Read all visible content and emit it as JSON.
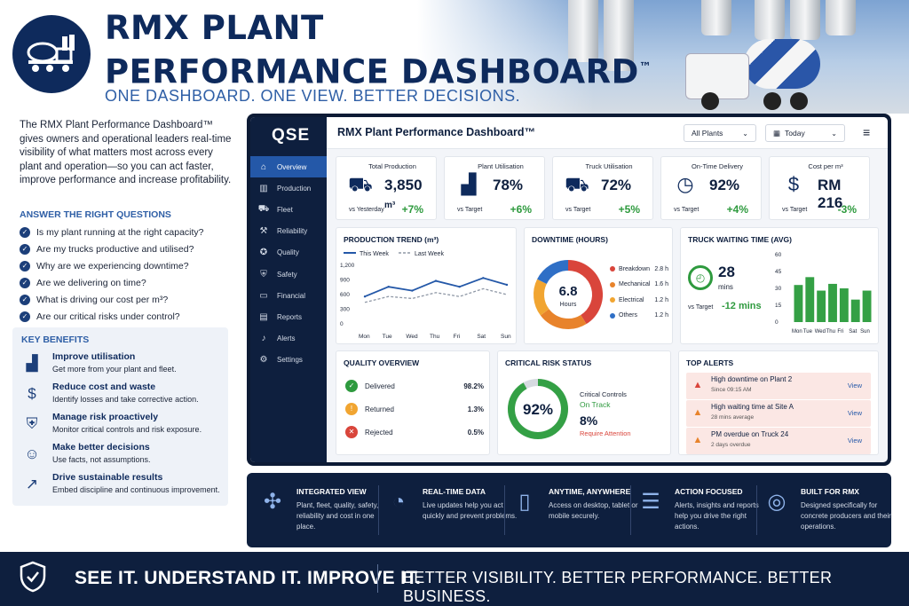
{
  "header": {
    "title_line1": "RMX PLANT",
    "title_line2": "PERFORMANCE DASHBOARD",
    "title_mark": "™",
    "tagline": "ONE DASHBOARD. ONE VIEW. BETTER DECISIONS."
  },
  "intro": "The RMX Plant Performance Dashboard™ gives owners and operational leaders real-time visibility of what matters most across every plant and operation—so you can act faster, improve performance and increase profitability.",
  "questions": {
    "heading": "ANSWER THE RIGHT QUESTIONS",
    "items": [
      "Is my plant running at the right capacity?",
      "Are my trucks productive and utilised?",
      "Why are we experiencing downtime?",
      "Are we delivering on time?",
      "What is driving our cost per m³?",
      "Are our critical risks under control?"
    ]
  },
  "benefits": {
    "heading": "KEY BENEFITS",
    "items": [
      {
        "title": "Improve utilisation",
        "desc": "Get more from your plant and fleet.",
        "icon": "bar-chart-icon"
      },
      {
        "title": "Reduce cost and waste",
        "desc": "Identify losses and take corrective action.",
        "icon": "dollar-icon"
      },
      {
        "title": "Manage risk proactively",
        "desc": "Monitor critical controls and risk exposure.",
        "icon": "shield-check-icon"
      },
      {
        "title": "Make better decisions",
        "desc": "Use facts, not assumptions.",
        "icon": "people-icon"
      },
      {
        "title": "Drive sustainable results",
        "desc": "Embed discipline and continuous improvement.",
        "icon": "trend-icon"
      }
    ]
  },
  "app": {
    "brand": "QSE",
    "title": "RMX Plant Performance Dashboard™",
    "plant_filter": "All Plants",
    "date_filter": "Today",
    "nav": [
      {
        "label": "Overview",
        "icon": "home-icon",
        "glyph": "⌂",
        "active": true
      },
      {
        "label": "Production",
        "icon": "factory-icon",
        "glyph": "▥"
      },
      {
        "label": "Fleet",
        "icon": "truck-icon",
        "glyph": "⛟"
      },
      {
        "label": "Reliability",
        "icon": "wrench-icon",
        "glyph": "⚒"
      },
      {
        "label": "Quality",
        "icon": "badge-icon",
        "glyph": "✪"
      },
      {
        "label": "Safety",
        "icon": "shield-icon",
        "glyph": "⛨"
      },
      {
        "label": "Financial",
        "icon": "wallet-icon",
        "glyph": "▭"
      },
      {
        "label": "Reports",
        "icon": "report-icon",
        "glyph": "▤"
      },
      {
        "label": "Alerts",
        "icon": "bell-icon",
        "glyph": "♪"
      },
      {
        "label": "Settings",
        "icon": "gear-icon",
        "glyph": "⚙"
      }
    ],
    "kpis": [
      {
        "label": "Total Production",
        "value": "3,850",
        "unit": "m³",
        "sub": "vs Yesterday",
        "change": "+7%",
        "icon": "mixer-truck-icon",
        "glyph": "⛟"
      },
      {
        "label": "Plant Utilisation",
        "value": "78%",
        "unit": "",
        "sub": "vs Target",
        "change": "+6%",
        "icon": "factory-icon",
        "glyph": "▟"
      },
      {
        "label": "Truck Utilisation",
        "value": "72%",
        "unit": "",
        "sub": "vs Target",
        "change": "+5%",
        "icon": "truck-icon",
        "glyph": "⛟"
      },
      {
        "label": "On-Time Delivery",
        "value": "92%",
        "unit": "",
        "sub": "vs Target",
        "change": "+4%",
        "icon": "clock-icon",
        "glyph": "◷"
      },
      {
        "label": "Cost per m³",
        "value": "RM 216",
        "unit": "",
        "sub": "vs Target",
        "change": "-3%",
        "icon": "dollar-icon",
        "glyph": "$"
      }
    ],
    "production_trend": {
      "title": "PRODUCTION TREND (m³)",
      "legend_this": "This Week",
      "legend_last": "Last Week",
      "days": [
        "Mon",
        "Tue",
        "Wed",
        "Thu",
        "Fri",
        "Sat",
        "Sun"
      ],
      "y_ticks": [
        "1,200",
        "900",
        "600",
        "300",
        "0"
      ],
      "ymax": 1200,
      "this_week": [
        560,
        760,
        680,
        880,
        760,
        940,
        800
      ],
      "last_week": [
        440,
        560,
        520,
        640,
        560,
        720,
        600
      ]
    },
    "downtime": {
      "title": "DOWNTIME (HOURS)",
      "total": "6.8",
      "total_unit": "Hours",
      "items": [
        {
          "label": "Breakdown",
          "value": "2.8 h",
          "hours": 2.8,
          "color": "#d9453b"
        },
        {
          "label": "Mechanical",
          "value": "1.6 h",
          "hours": 1.6,
          "color": "#e8832b"
        },
        {
          "label": "Electrical",
          "value": "1.2 h",
          "hours": 1.2,
          "color": "#f1a531"
        },
        {
          "label": "Others",
          "value": "1.2 h",
          "hours": 1.2,
          "color": "#2f6fc6"
        }
      ]
    },
    "truck_waiting": {
      "title": "TRUCK WAITING TIME (AVG)",
      "value": "28",
      "unit": "mins",
      "sub": "vs Target",
      "change": "-12 mins",
      "y_ticks": [
        "60",
        "45",
        "30",
        "15",
        "0"
      ],
      "ymax": 60,
      "days": [
        "Mon",
        "Tue",
        "Wed",
        "Thu",
        "Fri",
        "Sat",
        "Sun"
      ],
      "values": [
        33,
        40,
        28,
        34,
        30,
        20,
        28
      ]
    },
    "quality": {
      "title": "QUALITY OVERVIEW",
      "rows": [
        {
          "label": "Delivered",
          "value": "98.2%",
          "color": "#2e9a3e",
          "glyph": "✓"
        },
        {
          "label": "Returned",
          "value": "1.3%",
          "color": "#f1a531",
          "glyph": "!"
        },
        {
          "label": "Rejected",
          "value": "0.5%",
          "color": "#d9453b",
          "glyph": "✕"
        }
      ]
    },
    "risk": {
      "title": "CRITICAL RISK STATUS",
      "percent": "92%",
      "fraction": 0.92,
      "label": "Critical Controls",
      "status": "On Track",
      "attention_value": "8%",
      "attention_label": "Require Attention"
    },
    "alerts": {
      "title": "TOP ALERTS",
      "view_label": "View",
      "items": [
        {
          "title": "High downtime on Plant 2",
          "sub": "Since 09:15 AM",
          "color": "#d9453b"
        },
        {
          "title": "High waiting time at Site A",
          "sub": "28 mins average",
          "color": "#e8832b"
        },
        {
          "title": "PM overdue on Truck 24",
          "sub": "2 days overdue",
          "color": "#e8832b"
        }
      ]
    }
  },
  "features": [
    {
      "title": "INTEGRATED VIEW",
      "desc": "Plant, fleet, quality, safety, reliability and cost in one place.",
      "icon": "network-icon",
      "glyph": "✣"
    },
    {
      "title": "REAL-TIME DATA",
      "desc": "Live updates help you act quickly and prevent problems.",
      "icon": "stopwatch-icon",
      "glyph": "◔"
    },
    {
      "title": "ANYTIME, ANYWHERE",
      "desc": "Access on desktop, tablet or mobile securely.",
      "icon": "mobile-icon",
      "glyph": "▯"
    },
    {
      "title": "ACTION FOCUSED",
      "desc": "Alerts, insights and reports help you drive the right actions.",
      "icon": "checklist-icon",
      "glyph": "☰"
    },
    {
      "title": "BUILT FOR RMX",
      "desc": "Designed specifically for concrete producers and their operations.",
      "icon": "target-icon",
      "glyph": "◎"
    }
  ],
  "footer": {
    "left": "SEE IT. UNDERSTAND IT. IMPROVE IT.",
    "right": "BETTER VISIBILITY. BETTER PERFORMANCE. BETTER BUSINESS."
  }
}
